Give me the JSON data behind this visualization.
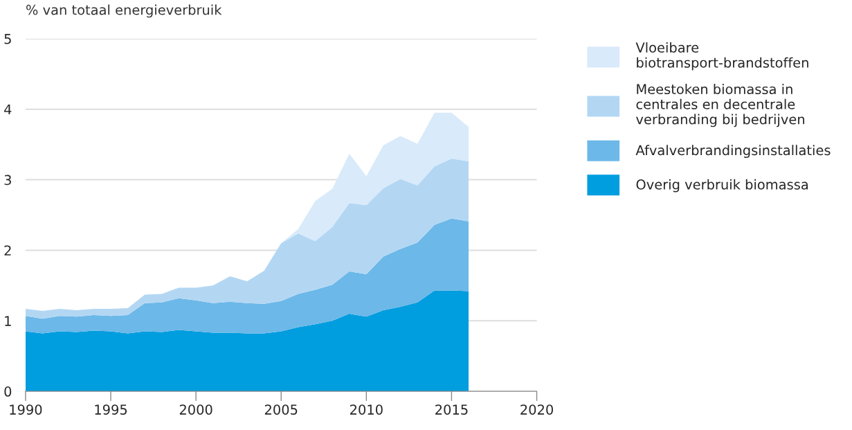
{
  "chart_data": {
    "type": "area",
    "stacked": true,
    "ylabel": "% van totaal energieverbruik",
    "x": [
      1990,
      1991,
      1992,
      1993,
      1994,
      1995,
      1996,
      1997,
      1998,
      1999,
      2000,
      2001,
      2002,
      2003,
      2004,
      2005,
      2006,
      2007,
      2008,
      2009,
      2010,
      2011,
      2012,
      2013,
      2014,
      2015,
      2016
    ],
    "series": [
      {
        "name": "Overig verbruik biomassa",
        "color": "#009ddf",
        "values": [
          0.85,
          0.82,
          0.85,
          0.84,
          0.86,
          0.85,
          0.82,
          0.85,
          0.84,
          0.87,
          0.85,
          0.83,
          0.83,
          0.82,
          0.82,
          0.85,
          0.91,
          0.95,
          1.0,
          1.1,
          1.06,
          1.15,
          1.2,
          1.26,
          1.43,
          1.43,
          1.42
        ]
      },
      {
        "name": "Afvalverbrandingsinstallaties",
        "color": "#6cb8e8",
        "values": [
          0.22,
          0.21,
          0.22,
          0.22,
          0.22,
          0.22,
          0.26,
          0.4,
          0.42,
          0.45,
          0.44,
          0.42,
          0.44,
          0.43,
          0.42,
          0.43,
          0.47,
          0.49,
          0.51,
          0.6,
          0.6,
          0.76,
          0.82,
          0.85,
          0.93,
          1.02,
          0.99
        ]
      },
      {
        "name": "Meestoken biomassa in centrales en decentrale verbranding bij bedrijven",
        "color": "#b3d7f3",
        "values": [
          0.1,
          0.11,
          0.1,
          0.09,
          0.09,
          0.1,
          0.1,
          0.12,
          0.12,
          0.15,
          0.18,
          0.25,
          0.36,
          0.31,
          0.47,
          0.82,
          0.86,
          0.69,
          0.82,
          0.97,
          0.98,
          0.97,
          0.99,
          0.81,
          0.83,
          0.85,
          0.85
        ]
      },
      {
        "name": "Vloeibare biotransport-brandstoffen",
        "color": "#d9eafa",
        "values": [
          0,
          0,
          0,
          0,
          0,
          0,
          0,
          0,
          0,
          0,
          0,
          0,
          0,
          0,
          0,
          0,
          0.06,
          0.57,
          0.54,
          0.7,
          0.41,
          0.61,
          0.61,
          0.59,
          0.76,
          0.65,
          0.49
        ]
      }
    ],
    "xlim": [
      1990,
      2020
    ],
    "xticks": [
      1990,
      1995,
      2000,
      2005,
      2010,
      2015,
      2020
    ],
    "ylim": [
      0,
      5
    ],
    "yticks": [
      0,
      1,
      2,
      3,
      4,
      5
    ],
    "grid": "y",
    "legend": "right"
  }
}
